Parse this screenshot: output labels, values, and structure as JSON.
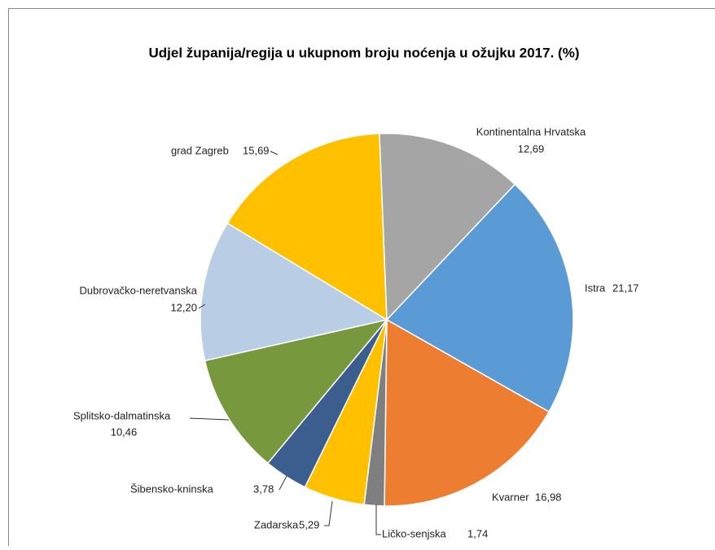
{
  "chart_data": {
    "type": "pie",
    "title": "Udjel županija/regija u ukupnom broju noćenja u ožujku 2017. (%)",
    "categories": [
      "Kontinentalna Hrvatska",
      "Istra",
      "Kvarner",
      "Ličko-senjska",
      "Zadarska",
      "Šibensko-kninska",
      "Splitsko-dalmatinska",
      "Dubrovačko-neretvanska",
      "grad Zagreb"
    ],
    "values": [
      12.69,
      21.17,
      16.98,
      1.74,
      5.29,
      3.78,
      10.46,
      12.2,
      15.69
    ],
    "value_labels": [
      "12,69",
      "21,17",
      "16,98",
      "1,74",
      "5,29",
      "3,78",
      "10,46",
      "12,20",
      "15,69"
    ],
    "colors": [
      "#a5a5a5",
      "#5b9bd5",
      "#ed7d31",
      "#7f7f7f",
      "#ffc000",
      "#3b5e8e",
      "#77983d",
      "#b9cde5",
      "#ffc000"
    ]
  }
}
